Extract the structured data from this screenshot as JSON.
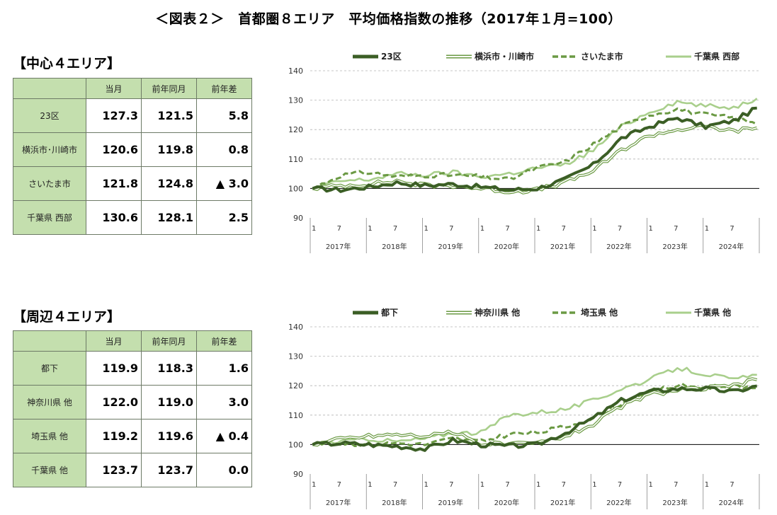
{
  "title": "＜図表２＞　首都圏８エリア　平均価格指数の推移（2017年１月=100）",
  "sections": [
    {
      "heading": "【中心４エリア】",
      "columns": [
        "",
        "当月",
        "前年同月",
        "前年差"
      ],
      "rows": [
        {
          "area": "23区",
          "current": "127.3",
          "prev_year": "121.5",
          "diff": "5.8"
        },
        {
          "area": "横浜市･川崎市",
          "current": "120.6",
          "prev_year": "119.8",
          "diff": "0.8"
        },
        {
          "area": "さいたま市",
          "current": "121.8",
          "prev_year": "124.8",
          "diff": "▲ 3.0"
        },
        {
          "area": "千葉県 西部",
          "current": "130.6",
          "prev_year": "128.1",
          "diff": "2.5"
        }
      ]
    },
    {
      "heading": "【周辺４エリア】",
      "columns": [
        "",
        "当月",
        "前年同月",
        "前年差"
      ],
      "rows": [
        {
          "area": "都下",
          "current": "119.9",
          "prev_year": "118.3",
          "diff": "1.6"
        },
        {
          "area": "神奈川県 他",
          "current": "122.0",
          "prev_year": "119.0",
          "diff": "3.0"
        },
        {
          "area": "埼玉県 他",
          "current": "119.2",
          "prev_year": "119.6",
          "diff": "▲ 0.4"
        },
        {
          "area": "千葉県 他",
          "current": "123.7",
          "prev_year": "123.7",
          "diff": "0.0"
        }
      ]
    }
  ],
  "colors": {
    "dark": "#3b5e25",
    "mid": "#6b9a44",
    "light": "#a9cf8c",
    "header_bg": "#c4dfae"
  },
  "chart_data": [
    {
      "type": "line",
      "ylim": [
        90,
        140
      ],
      "yticks": [
        90,
        100,
        110,
        120,
        130,
        140
      ],
      "x_month_labels": [
        "1",
        "7"
      ],
      "years": [
        "2017年",
        "2018年",
        "2019年",
        "2020年",
        "2021年",
        "2022年",
        "2023年",
        "2024年"
      ],
      "legend_position": "top",
      "grid": "dashed horizontal",
      "baseline": 100,
      "x_keypoints_months_since_2017_01": [
        0,
        6,
        12,
        18,
        24,
        30,
        36,
        42,
        48,
        54,
        60,
        66,
        72,
        78,
        84,
        90,
        95
      ],
      "series": [
        {
          "name": "23区",
          "style": "thick",
          "values": [
            100,
            99.5,
            100.5,
            102,
            101,
            101.5,
            100.5,
            99.5,
            100,
            103,
            108,
            117,
            121,
            124,
            121,
            123,
            127.3
          ]
        },
        {
          "name": "横浜市・川崎市",
          "style": "double",
          "values": [
            100,
            101,
            101.5,
            102.5,
            101,
            101,
            100,
            99,
            99.5,
            102,
            106,
            113,
            118,
            120,
            121,
            119.5,
            120.6
          ]
        },
        {
          "name": "さいたま市",
          "style": "dashed",
          "values": [
            100,
            104.5,
            105.5,
            104,
            104.5,
            104.5,
            104,
            103,
            107,
            109,
            115,
            121,
            125,
            127,
            125,
            124,
            121.8
          ]
        },
        {
          "name": "千葉県 西部",
          "style": "light",
          "values": [
            100,
            102.5,
            103,
            105,
            104.5,
            105.5,
            104,
            105,
            107,
            108,
            113,
            121,
            126,
            129.5,
            128,
            127.5,
            130.6
          ]
        }
      ]
    },
    {
      "type": "line",
      "ylim": [
        90,
        140
      ],
      "yticks": [
        90,
        100,
        110,
        120,
        130,
        140
      ],
      "x_month_labels": [
        "1",
        "7"
      ],
      "years": [
        "2017年",
        "2018年",
        "2019年",
        "2020年",
        "2021年",
        "2022年",
        "2023年",
        "2024年"
      ],
      "legend_position": "top",
      "grid": "dashed horizontal",
      "baseline": 100,
      "x_keypoints_months_since_2017_01": [
        0,
        6,
        12,
        18,
        24,
        30,
        36,
        42,
        48,
        54,
        60,
        66,
        72,
        78,
        84,
        90,
        95
      ],
      "series": [
        {
          "name": "都下",
          "style": "thick",
          "values": [
            100,
            100.5,
            100,
            99.5,
            98.5,
            101.5,
            100,
            99.5,
            100,
            104,
            109,
            115,
            118,
            119,
            119,
            118,
            119.9
          ]
        },
        {
          "name": "神奈川県 他",
          "style": "double",
          "values": [
            100,
            102,
            103,
            103.5,
            103,
            104,
            100.5,
            100,
            100.5,
            103,
            107,
            113,
            117,
            118.5,
            119,
            120,
            122.0
          ]
        },
        {
          "name": "埼玉県 他",
          "style": "dashed",
          "values": [
            100,
            100.5,
            100,
            100.5,
            100,
            102,
            101,
            103.5,
            104,
            106,
            109,
            114,
            118,
            120,
            119.5,
            120,
            119.2
          ]
        },
        {
          "name": "千葉県 他",
          "style": "light",
          "values": [
            100,
            101,
            102,
            101,
            102,
            104,
            104,
            110,
            111,
            112,
            115,
            119,
            122,
            126,
            124,
            122,
            123.7
          ]
        }
      ]
    }
  ]
}
